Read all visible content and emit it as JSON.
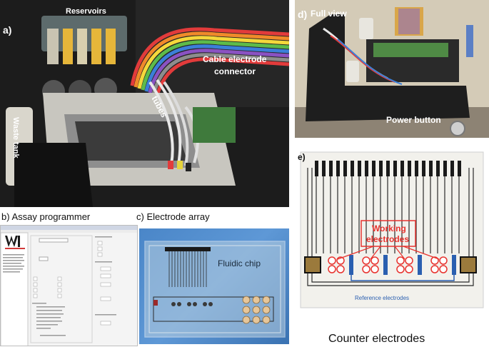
{
  "panel_a": {
    "letter": "a)",
    "reservoirs": "Reservoirs",
    "cable": "Cable electrode",
    "connector": "connector",
    "tubes": "tubes",
    "waste": "Waste tank"
  },
  "panel_b": {
    "caption": "b) Assay programmer"
  },
  "panel_c": {
    "caption": "c) Electrode array",
    "chip_label": "Fluidic chip"
  },
  "panel_d": {
    "letter": "d)",
    "full_view": "Full view",
    "power": "Power button"
  },
  "panel_e": {
    "letter": "e)",
    "working1": "Working",
    "working2": "electrodes",
    "reference": "Reference electrodes",
    "counter": "Counter electrodes"
  },
  "colors": {
    "working_red": "#e8322e",
    "reference_blue": "#2a5fb0",
    "blue_bg": "#4a86c8"
  }
}
